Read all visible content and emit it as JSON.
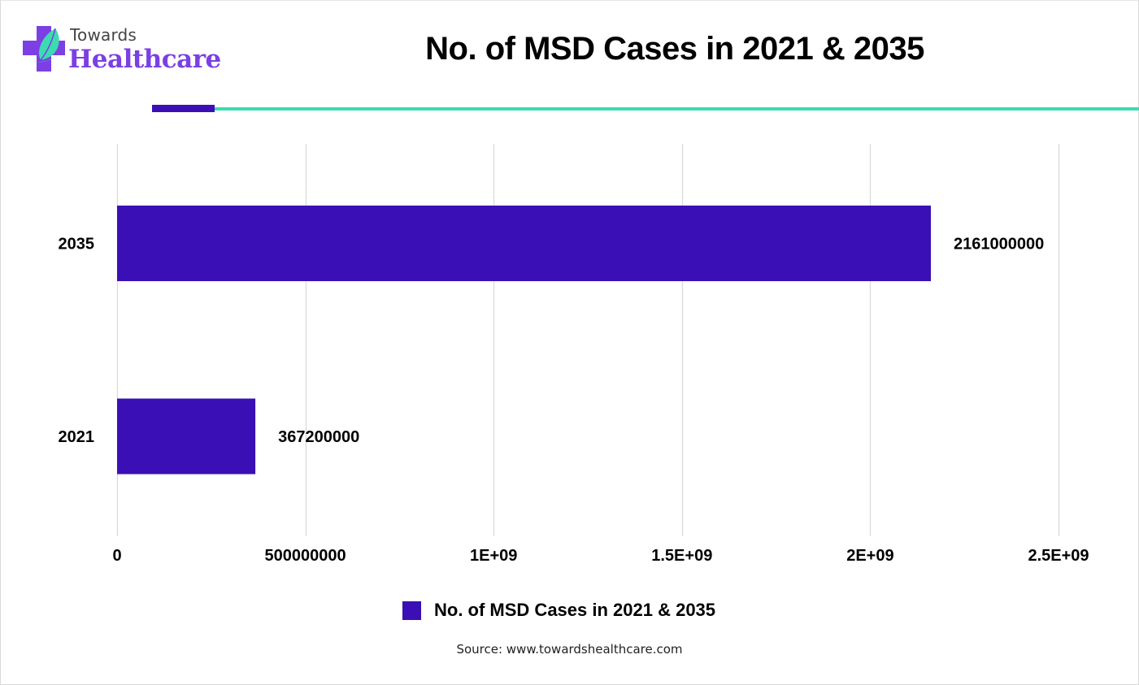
{
  "brand": {
    "line1": "Towards",
    "line2": "Healthcare",
    "logo_icon": "medical-cross-leaf-icon",
    "colors": {
      "primary": "#7b3fe4",
      "accent": "#3ddbb0",
      "text": "#444444"
    }
  },
  "decor_colors": {
    "bar_dark": "#3a0fb5",
    "line_teal": "#3ddbb0"
  },
  "chart_data": {
    "type": "bar",
    "orientation": "horizontal",
    "title": "No. of MSD Cases in 2021 & 2035",
    "categories": [
      "2035",
      "2021"
    ],
    "series": [
      {
        "name": "No. of MSD Cases in 2021 & 2035",
        "values": [
          2161000000,
          367200000
        ],
        "color": "#3a0fb5"
      }
    ],
    "data_labels": [
      "2161000000",
      "367200000"
    ],
    "xlim": [
      0,
      2500000000
    ],
    "xticks": [
      0,
      500000000,
      1000000000,
      1500000000,
      2000000000,
      2500000000
    ],
    "xtick_labels": [
      "0",
      "500000000",
      "1E+09",
      "1.5E+09",
      "2E+09",
      "2.5E+09"
    ],
    "xlabel": "",
    "ylabel": "",
    "grid": true,
    "legend": {
      "position": "bottom",
      "entries": [
        "No. of MSD Cases in 2021 & 2035"
      ]
    }
  },
  "source": "Source: www.towardshealthcare.com"
}
